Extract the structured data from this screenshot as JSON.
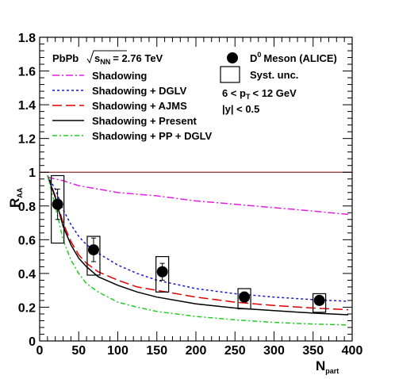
{
  "chart_data": {
    "type": "line",
    "xlabel": {
      "main": "N",
      "sub": "part"
    },
    "ylabel": {
      "main": "R",
      "sub": "AA"
    },
    "xlim": [
      0,
      400
    ],
    "ylim": [
      0,
      1.8
    ],
    "x_ticks": [
      0,
      50,
      100,
      150,
      200,
      250,
      300,
      350,
      400
    ],
    "x_tick_labels": [
      "0",
      "50",
      "100",
      "150",
      "200",
      "250",
      "300",
      "350",
      "400"
    ],
    "y_ticks": [
      0,
      0.2,
      0.4,
      0.6,
      0.8,
      1,
      1.2,
      1.4,
      1.6,
      1.8
    ],
    "y_tick_labels": [
      "0",
      "0.2",
      "0.4",
      "0.6",
      "0.8",
      "1",
      "1.2",
      "1.4",
      "1.6",
      "1.8"
    ],
    "reference_line": {
      "y": 1,
      "color": "#8b2f2f"
    },
    "system_label": "PbPb",
    "energy_label": {
      "prefix": "s",
      "sub": "NN",
      "suffix": "= 2.76 TeV"
    },
    "legend_lines": [
      {
        "name": "Shadowing",
        "color": "#e020e0",
        "dash": "9,3,2,3"
      },
      {
        "name": "Shadowing + DGLV",
        "color": "#1a1acc",
        "dash": "3,3"
      },
      {
        "name": "Shadowing + AJMS",
        "color": "#e00000",
        "dash": "12,5"
      },
      {
        "name": "Shadowing + Present",
        "color": "#000000",
        "dash": ""
      },
      {
        "name": "Shadowing + PP + DGLV",
        "color": "#22cc22",
        "dash": "6,3,2,3"
      }
    ],
    "legend_markers": {
      "data_label": "Meson (ALICE)",
      "data_prefix": "D",
      "data_sup": "0",
      "syst_label": "Syst. unc."
    },
    "cuts": {
      "pt_pre": "6 < p",
      "pt_sub": "T",
      "pt_post": "< 12 GeV",
      "y_cut": "|y| < 0.5"
    },
    "data_points": [
      {
        "x": 23,
        "y": 0.81,
        "stat_lo": 0.72,
        "stat_hi": 0.9,
        "syst_lo": 0.58,
        "syst_hi": 0.98,
        "box_half_width": 8
      },
      {
        "x": 69,
        "y": 0.54,
        "stat_lo": 0.47,
        "stat_hi": 0.61,
        "syst_lo": 0.39,
        "syst_hi": 0.62,
        "box_half_width": 8
      },
      {
        "x": 157,
        "y": 0.41,
        "stat_lo": 0.36,
        "stat_hi": 0.46,
        "syst_lo": 0.29,
        "syst_hi": 0.5,
        "box_half_width": 8
      },
      {
        "x": 262,
        "y": 0.26,
        "stat_lo": 0.23,
        "stat_hi": 0.29,
        "syst_lo": 0.19,
        "syst_hi": 0.31,
        "box_half_width": 8
      },
      {
        "x": 358,
        "y": 0.24,
        "stat_lo": 0.22,
        "stat_hi": 0.26,
        "syst_lo": 0.17,
        "syst_hi": 0.28,
        "box_half_width": 8
      }
    ],
    "series": [
      {
        "name": "Shadowing",
        "points": [
          [
            10,
            0.97
          ],
          [
            30,
            0.95
          ],
          [
            50,
            0.92
          ],
          [
            75,
            0.9
          ],
          [
            100,
            0.88
          ],
          [
            150,
            0.86
          ],
          [
            200,
            0.83
          ],
          [
            250,
            0.81
          ],
          [
            300,
            0.79
          ],
          [
            350,
            0.77
          ],
          [
            395,
            0.75
          ]
        ]
      },
      {
        "name": "Shadowing + DGLV",
        "points": [
          [
            10,
            0.98
          ],
          [
            20,
            0.9
          ],
          [
            30,
            0.78
          ],
          [
            40,
            0.69
          ],
          [
            50,
            0.62
          ],
          [
            60,
            0.57
          ],
          [
            75,
            0.52
          ],
          [
            100,
            0.45
          ],
          [
            125,
            0.4
          ],
          [
            150,
            0.36
          ],
          [
            200,
            0.31
          ],
          [
            250,
            0.28
          ],
          [
            300,
            0.26
          ],
          [
            350,
            0.245
          ],
          [
            395,
            0.235
          ]
        ]
      },
      {
        "name": "Shadowing + AJMS",
        "points": [
          [
            10,
            0.98
          ],
          [
            20,
            0.86
          ],
          [
            30,
            0.7
          ],
          [
            40,
            0.59
          ],
          [
            50,
            0.51
          ],
          [
            60,
            0.46
          ],
          [
            75,
            0.41
          ],
          [
            100,
            0.36
          ],
          [
            125,
            0.32
          ],
          [
            150,
            0.3
          ],
          [
            200,
            0.26
          ],
          [
            250,
            0.23
          ],
          [
            300,
            0.21
          ],
          [
            350,
            0.195
          ],
          [
            395,
            0.185
          ]
        ]
      },
      {
        "name": "Shadowing + Present",
        "points": [
          [
            10,
            0.98
          ],
          [
            20,
            0.85
          ],
          [
            30,
            0.68
          ],
          [
            40,
            0.57
          ],
          [
            50,
            0.49
          ],
          [
            60,
            0.44
          ],
          [
            75,
            0.38
          ],
          [
            100,
            0.33
          ],
          [
            125,
            0.29
          ],
          [
            150,
            0.26
          ],
          [
            200,
            0.22
          ],
          [
            250,
            0.195
          ],
          [
            300,
            0.18
          ],
          [
            350,
            0.165
          ],
          [
            395,
            0.155
          ]
        ]
      },
      {
        "name": "Shadowing + PP + DGLV",
        "points": [
          [
            10,
            0.98
          ],
          [
            20,
            0.8
          ],
          [
            30,
            0.6
          ],
          [
            40,
            0.48
          ],
          [
            50,
            0.4
          ],
          [
            60,
            0.34
          ],
          [
            75,
            0.29
          ],
          [
            100,
            0.23
          ],
          [
            125,
            0.2
          ],
          [
            150,
            0.175
          ],
          [
            200,
            0.145
          ],
          [
            250,
            0.125
          ],
          [
            300,
            0.11
          ],
          [
            350,
            0.1
          ],
          [
            395,
            0.095
          ]
        ]
      }
    ]
  }
}
